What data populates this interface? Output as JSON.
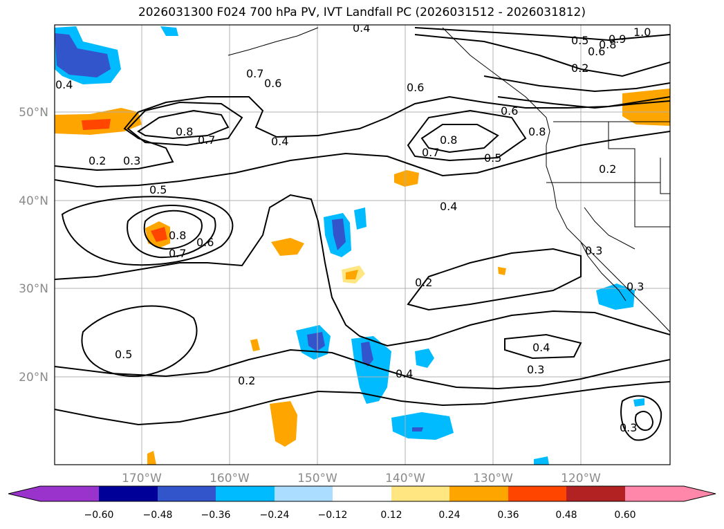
{
  "title": "2026031300 F024 700 hPa PV, IVT Landfall PC (2026031512 - 2026031812)",
  "map": {
    "lat_labels": [
      "50°N",
      "40°N",
      "30°N",
      "20°N"
    ],
    "lon_labels": [
      "170°W",
      "160°W",
      "150°W",
      "140°W",
      "130°W",
      "120°W"
    ],
    "contour_labels": [
      "0.4",
      "0.8",
      "0.9",
      "1.0",
      "0.5",
      "0.6",
      "0.2",
      "0.7",
      "0.6",
      "0.4",
      "0.6",
      "0.8",
      "0.7",
      "0.4",
      "0.8",
      "0.7",
      "0.5",
      "0.6",
      "0.8",
      "0.2",
      "0.3",
      "0.5",
      "0.4",
      "0.8",
      "0.7",
      "0.6",
      "0.2",
      "0.3",
      "0.3",
      "0.5",
      "0.2",
      "0.4",
      "0.4",
      "0.3",
      "0.3",
      "0.2"
    ]
  },
  "colorbar": {
    "ticks": [
      "−0.60",
      "−0.48",
      "−0.36",
      "−0.24",
      "−0.12",
      "0.12",
      "0.24",
      "0.36",
      "0.48",
      "0.60"
    ],
    "colors": [
      "#9933cc",
      "#000099",
      "#3355cc",
      "#00bbff",
      "#aaddff",
      "#ffffff",
      "#ffe680",
      "#ffa500",
      "#ff4500",
      "#b22222",
      "#ff88aa"
    ]
  }
}
